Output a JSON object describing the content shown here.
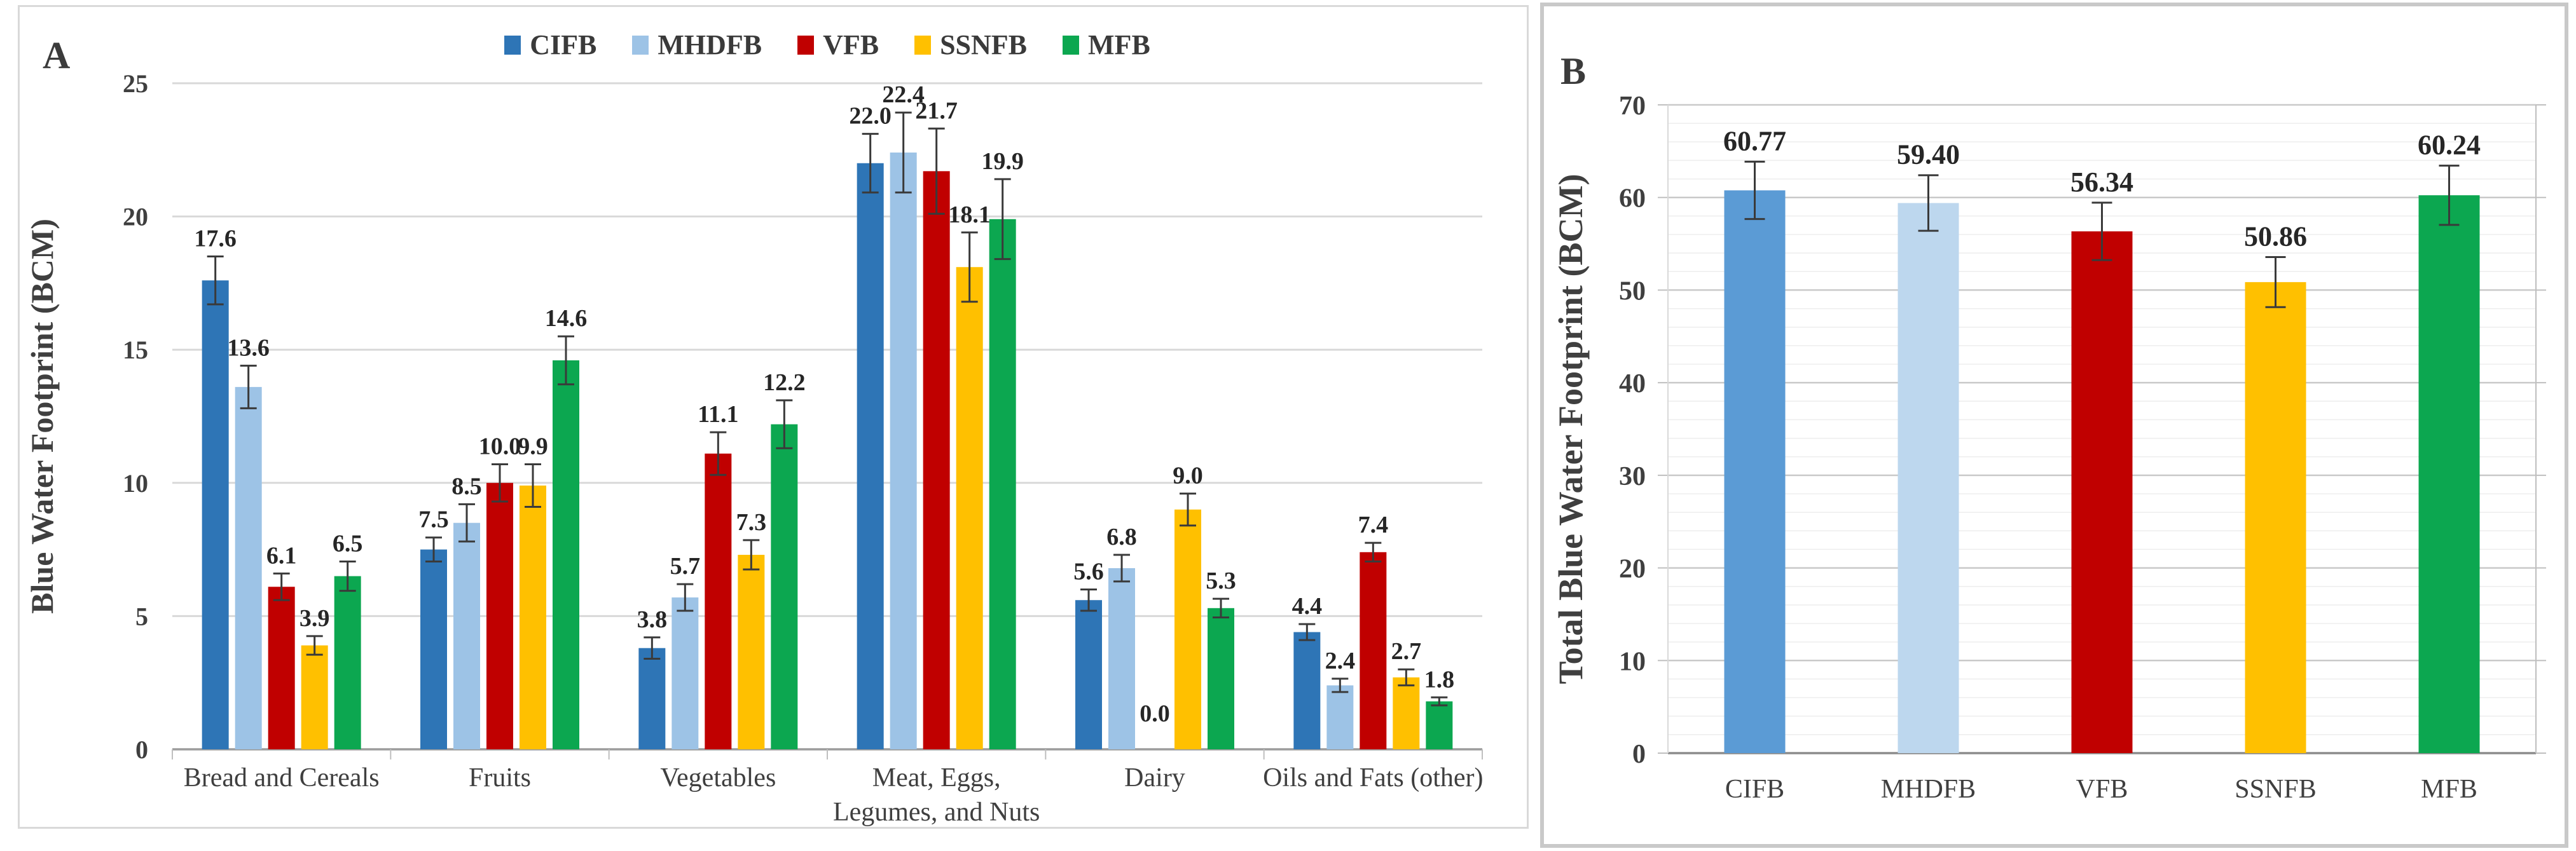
{
  "page": {
    "background": "#FFFFFF"
  },
  "panel_a": {
    "letter": "A",
    "y_axis_title": "Blue Water Footprint (BCM)",
    "y_ticks": [
      "0",
      "5",
      "10",
      "15",
      "20",
      "25"
    ],
    "chart_data": {
      "type": "bar",
      "title": "",
      "ylabel": "Blue Water Footprint (BCM)",
      "ylim": [
        0,
        25
      ],
      "gridline_step": 5,
      "grid": "horizontal-major",
      "legend_position": "top-center",
      "error_bars": "both-directions",
      "categories": [
        "Bread and Cereals",
        "Fruits",
        "Vegetables",
        "Meat, Eggs, Legumes, and Nuts",
        "Dairy",
        "Oils and Fats (other)"
      ],
      "category_label_lines": [
        [
          "Bread and Cereals"
        ],
        [
          "Fruits"
        ],
        [
          "Vegetables"
        ],
        [
          "Meat, Eggs,",
          "Legumes, and Nuts"
        ],
        [
          "Dairy"
        ],
        [
          "Oils and Fats (other)"
        ]
      ],
      "series": [
        {
          "name": "CIFB",
          "color": "#2E75B6",
          "values": [
            17.6,
            7.5,
            3.8,
            22.0,
            5.6,
            4.4
          ],
          "value_labels": [
            "17.6",
            "7.5",
            "3.8",
            "22.0",
            "5.6",
            "4.4"
          ],
          "errors": [
            0.9,
            0.45,
            0.4,
            1.1,
            0.4,
            0.3
          ]
        },
        {
          "name": "MHDFB",
          "color": "#9DC3E6",
          "values": [
            13.6,
            8.5,
            5.7,
            22.4,
            6.8,
            2.4
          ],
          "value_labels": [
            "13.6",
            "8.5",
            "5.7",
            "22.4",
            "6.8",
            "2.4"
          ],
          "errors": [
            0.8,
            0.7,
            0.5,
            1.5,
            0.5,
            0.25
          ]
        },
        {
          "name": "VFB",
          "color": "#C00000",
          "values": [
            6.1,
            10.0,
            11.1,
            21.7,
            0.0,
            7.4
          ],
          "value_labels": [
            "6.1",
            "10.0",
            "11.1",
            "21.7",
            "0.0",
            "7.4"
          ],
          "errors": [
            0.5,
            0.7,
            0.8,
            1.6,
            0,
            0.35
          ]
        },
        {
          "name": "SSNFB",
          "color": "#FFC000",
          "values": [
            3.9,
            9.9,
            7.3,
            18.1,
            9.0,
            2.7
          ],
          "value_labels": [
            "3.9",
            "9.9",
            "7.3",
            "18.1",
            "9.0",
            "2.7"
          ],
          "errors": [
            0.35,
            0.8,
            0.55,
            1.3,
            0.6,
            0.3
          ]
        },
        {
          "name": "MFB",
          "color": "#0CA750",
          "values": [
            6.5,
            14.6,
            12.2,
            19.9,
            5.3,
            1.8
          ],
          "value_labels": [
            "6.5",
            "14.6",
            "12.2",
            "19.9",
            "5.3",
            "1.8"
          ],
          "errors": [
            0.55,
            0.9,
            0.9,
            1.5,
            0.35,
            0.15
          ]
        }
      ]
    }
  },
  "panel_b": {
    "letter": "B",
    "y_axis_title": "Total Blue Water Footprint (BCM)",
    "y_ticks": [
      "0",
      "10",
      "20",
      "30",
      "40",
      "50",
      "60",
      "70"
    ],
    "chart_data": {
      "type": "bar",
      "title": "",
      "ylabel": "Total Blue Water Footprint (BCM)",
      "ylim": [
        0,
        70
      ],
      "gridline_step": 10,
      "minor_gridline_step": 2,
      "grid": "horizontal-major-minor",
      "error_bars": "both-directions",
      "categories": [
        "CIFB",
        "MHDFB",
        "VFB",
        "SSNFB",
        "MFB"
      ],
      "colors": [
        "#5B9BD5",
        "#BDD7EE",
        "#C00000",
        "#FFC000",
        "#0CA750"
      ],
      "values": [
        60.77,
        59.4,
        56.34,
        50.86,
        60.24
      ],
      "value_labels": [
        "60.77",
        "59.40",
        "56.34",
        "50.86",
        "60.24"
      ],
      "errors": [
        3.1,
        3.0,
        3.1,
        2.7,
        3.2
      ]
    }
  }
}
